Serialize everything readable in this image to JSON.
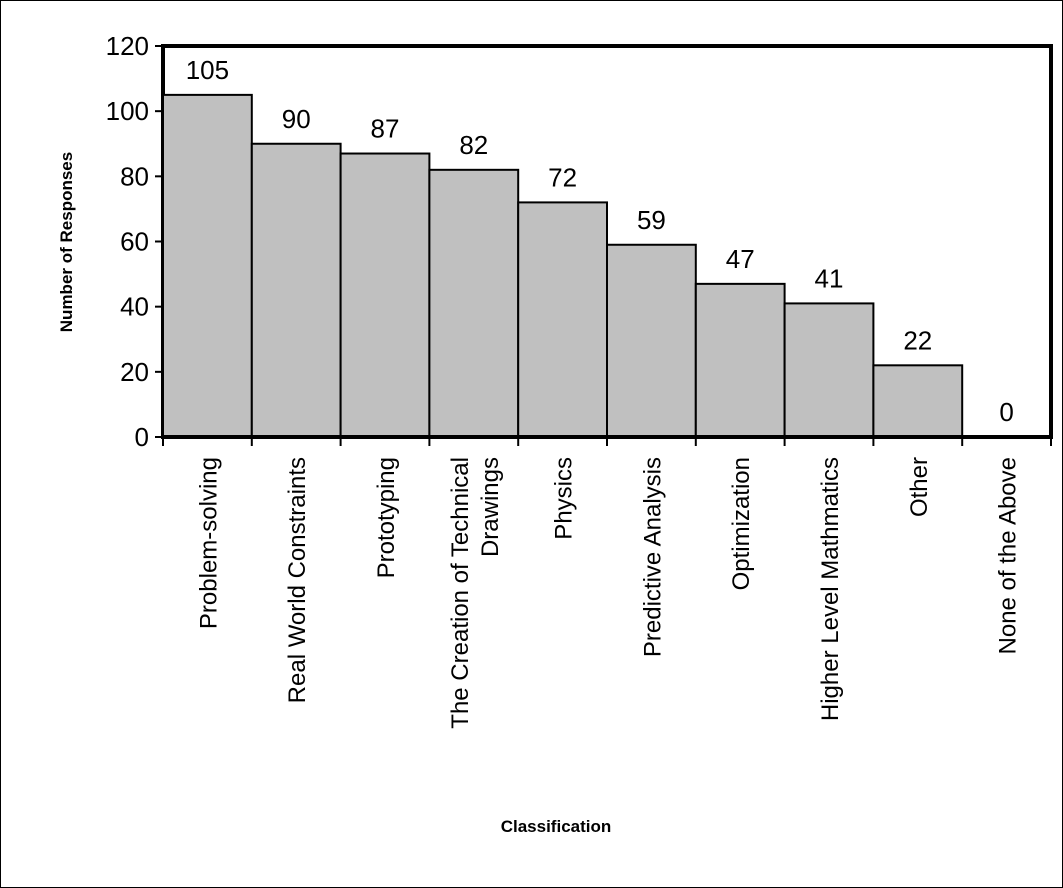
{
  "chart_data": {
    "type": "bar",
    "title": "",
    "xlabel": "Classification",
    "ylabel": "Number of Responses",
    "categories": [
      [
        "Problem-solving"
      ],
      [
        "Real World Constraints"
      ],
      [
        "Prototyping"
      ],
      [
        "The Creation of Technical",
        "Drawings"
      ],
      [
        "Physics"
      ],
      [
        "Predictive Analysis"
      ],
      [
        "Optimization"
      ],
      [
        "Higher Level Mathmatics"
      ],
      [
        "Other"
      ],
      [
        "None of the Above"
      ]
    ],
    "values": [
      105,
      90,
      87,
      82,
      72,
      59,
      47,
      41,
      22,
      0
    ],
    "ylim": [
      0,
      120
    ],
    "yticks": [
      0,
      20,
      40,
      60,
      80,
      100,
      120
    ],
    "grid": false,
    "legend": "none",
    "bar_color": "#c0c0c0",
    "edge_color": "#000000"
  }
}
